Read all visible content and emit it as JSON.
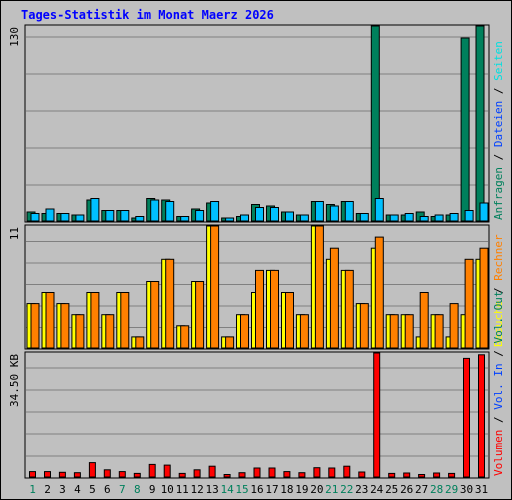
{
  "title": "Tages-Statistik im Monat Maerz 2026",
  "colors": {
    "hits": "#00805c",
    "files": "#00c0ff",
    "pages": "#00e0e0",
    "visits": "#ffff00",
    "sites": "#ff8000",
    "volume": "#ff0000",
    "weekday_label": "#000000",
    "weekend_label": "#00805c",
    "legend_slash": "#000000"
  },
  "chart_data": [
    {
      "type": "bar",
      "panel": "top",
      "y_tick_label": "130",
      "ylim": [
        0,
        130
      ],
      "legend": [
        {
          "text": "Anfragen",
          "color": "#00805c"
        },
        {
          "text": "Dateien",
          "color": "#0040ff"
        },
        {
          "text": "Seiten",
          "color": "#00e0e0"
        }
      ],
      "categories": [
        "1",
        "2",
        "3",
        "4",
        "5",
        "6",
        "7",
        "8",
        "9",
        "10",
        "11",
        "12",
        "13",
        "14",
        "15",
        "16",
        "17",
        "18",
        "19",
        "20",
        "21",
        "22",
        "23",
        "24",
        "25",
        "26",
        "27",
        "28",
        "29",
        "30",
        "31"
      ],
      "series": [
        {
          "name": "Anfragen",
          "color": "#00805c",
          "values": [
            6,
            5,
            5,
            4,
            14,
            7,
            7,
            2,
            15,
            14,
            3,
            8,
            12,
            2,
            3,
            11,
            10,
            6,
            4,
            13,
            11,
            13,
            5,
            130,
            4,
            4,
            6,
            3,
            4,
            122,
            130
          ]
        },
        {
          "name": "Dateien",
          "color": "#00c0ff",
          "values": [
            5,
            8,
            5,
            4,
            15,
            7,
            7,
            3,
            14,
            13,
            3,
            7,
            13,
            2,
            4,
            9,
            9,
            6,
            4,
            13,
            10,
            13,
            5,
            15,
            4,
            5,
            3,
            4,
            5,
            7,
            12
          ]
        }
      ]
    },
    {
      "type": "bar",
      "panel": "middle",
      "y_tick_label": "11",
      "ylim": [
        0,
        11
      ],
      "legend": [
        {
          "text": "Besuche",
          "color": "#ffff00"
        },
        {
          "text": "Rechner",
          "color": "#ff8000"
        }
      ],
      "categories": [
        "1",
        "2",
        "3",
        "4",
        "5",
        "6",
        "7",
        "8",
        "9",
        "10",
        "11",
        "12",
        "13",
        "14",
        "15",
        "16",
        "17",
        "18",
        "19",
        "20",
        "21",
        "22",
        "23",
        "24",
        "25",
        "26",
        "27",
        "28",
        "29",
        "30",
        "31"
      ],
      "series": [
        {
          "name": "Besuche",
          "color": "#ffff00",
          "values": [
            4,
            5,
            4,
            3,
            5,
            3,
            5,
            1,
            6,
            8,
            2,
            6,
            11,
            1,
            3,
            5,
            7,
            5,
            3,
            11,
            8,
            7,
            4,
            9,
            3,
            3,
            1,
            3,
            1,
            3,
            8
          ]
        },
        {
          "name": "Rechner",
          "color": "#ff8000",
          "values": [
            4,
            5,
            4,
            3,
            5,
            3,
            5,
            1,
            6,
            8,
            2,
            6,
            11,
            1,
            3,
            7,
            7,
            5,
            3,
            11,
            9,
            7,
            4,
            10,
            3,
            3,
            5,
            3,
            4,
            8,
            9
          ]
        }
      ]
    },
    {
      "type": "bar",
      "panel": "bottom",
      "y_tick_label": "34.50 KB",
      "ylim": [
        0,
        34.5
      ],
      "legend": [
        {
          "text": "Volumen",
          "color": "#ff0000"
        },
        {
          "text": "Vol. In",
          "color": "#0040ff"
        },
        {
          "text": "Vol. Out",
          "color": "#00805c"
        }
      ],
      "categories": [
        "1",
        "2",
        "3",
        "4",
        "5",
        "6",
        "7",
        "8",
        "9",
        "10",
        "11",
        "12",
        "13",
        "14",
        "15",
        "16",
        "17",
        "18",
        "19",
        "20",
        "21",
        "22",
        "23",
        "24",
        "25",
        "26",
        "27",
        "28",
        "29",
        "30",
        "31"
      ],
      "series": [
        {
          "name": "Volumen",
          "color": "#ff0000",
          "values": [
            1.5,
            1.5,
            1.3,
            1.2,
            4,
            2,
            1.5,
            1,
            3.5,
            3.3,
            1,
            2,
            3,
            0.7,
            1.2,
            2.5,
            2.5,
            1.5,
            1.2,
            2.6,
            2.5,
            3,
            1.4,
            34.5,
            1,
            1.1,
            0.7,
            1.1,
            1,
            33,
            34
          ]
        }
      ]
    }
  ],
  "x_labels": [
    {
      "text": "1",
      "weekend": true
    },
    {
      "text": "2",
      "weekend": false
    },
    {
      "text": "3",
      "weekend": false
    },
    {
      "text": "4",
      "weekend": false
    },
    {
      "text": "5",
      "weekend": false
    },
    {
      "text": "6",
      "weekend": false
    },
    {
      "text": "7",
      "weekend": true
    },
    {
      "text": "8",
      "weekend": true
    },
    {
      "text": "9",
      "weekend": false
    },
    {
      "text": "10",
      "weekend": false
    },
    {
      "text": "11",
      "weekend": false
    },
    {
      "text": "12",
      "weekend": false
    },
    {
      "text": "13",
      "weekend": false
    },
    {
      "text": "14",
      "weekend": true
    },
    {
      "text": "15",
      "weekend": true
    },
    {
      "text": "16",
      "weekend": false
    },
    {
      "text": "17",
      "weekend": false
    },
    {
      "text": "18",
      "weekend": false
    },
    {
      "text": "19",
      "weekend": false
    },
    {
      "text": "20",
      "weekend": false
    },
    {
      "text": "21",
      "weekend": true
    },
    {
      "text": "22",
      "weekend": true
    },
    {
      "text": "23",
      "weekend": false
    },
    {
      "text": "24",
      "weekend": false
    },
    {
      "text": "25",
      "weekend": false
    },
    {
      "text": "26",
      "weekend": false
    },
    {
      "text": "27",
      "weekend": false
    },
    {
      "text": "28",
      "weekend": true
    },
    {
      "text": "29",
      "weekend": true
    },
    {
      "text": "30",
      "weekend": false
    },
    {
      "text": "31",
      "weekend": false
    }
  ]
}
